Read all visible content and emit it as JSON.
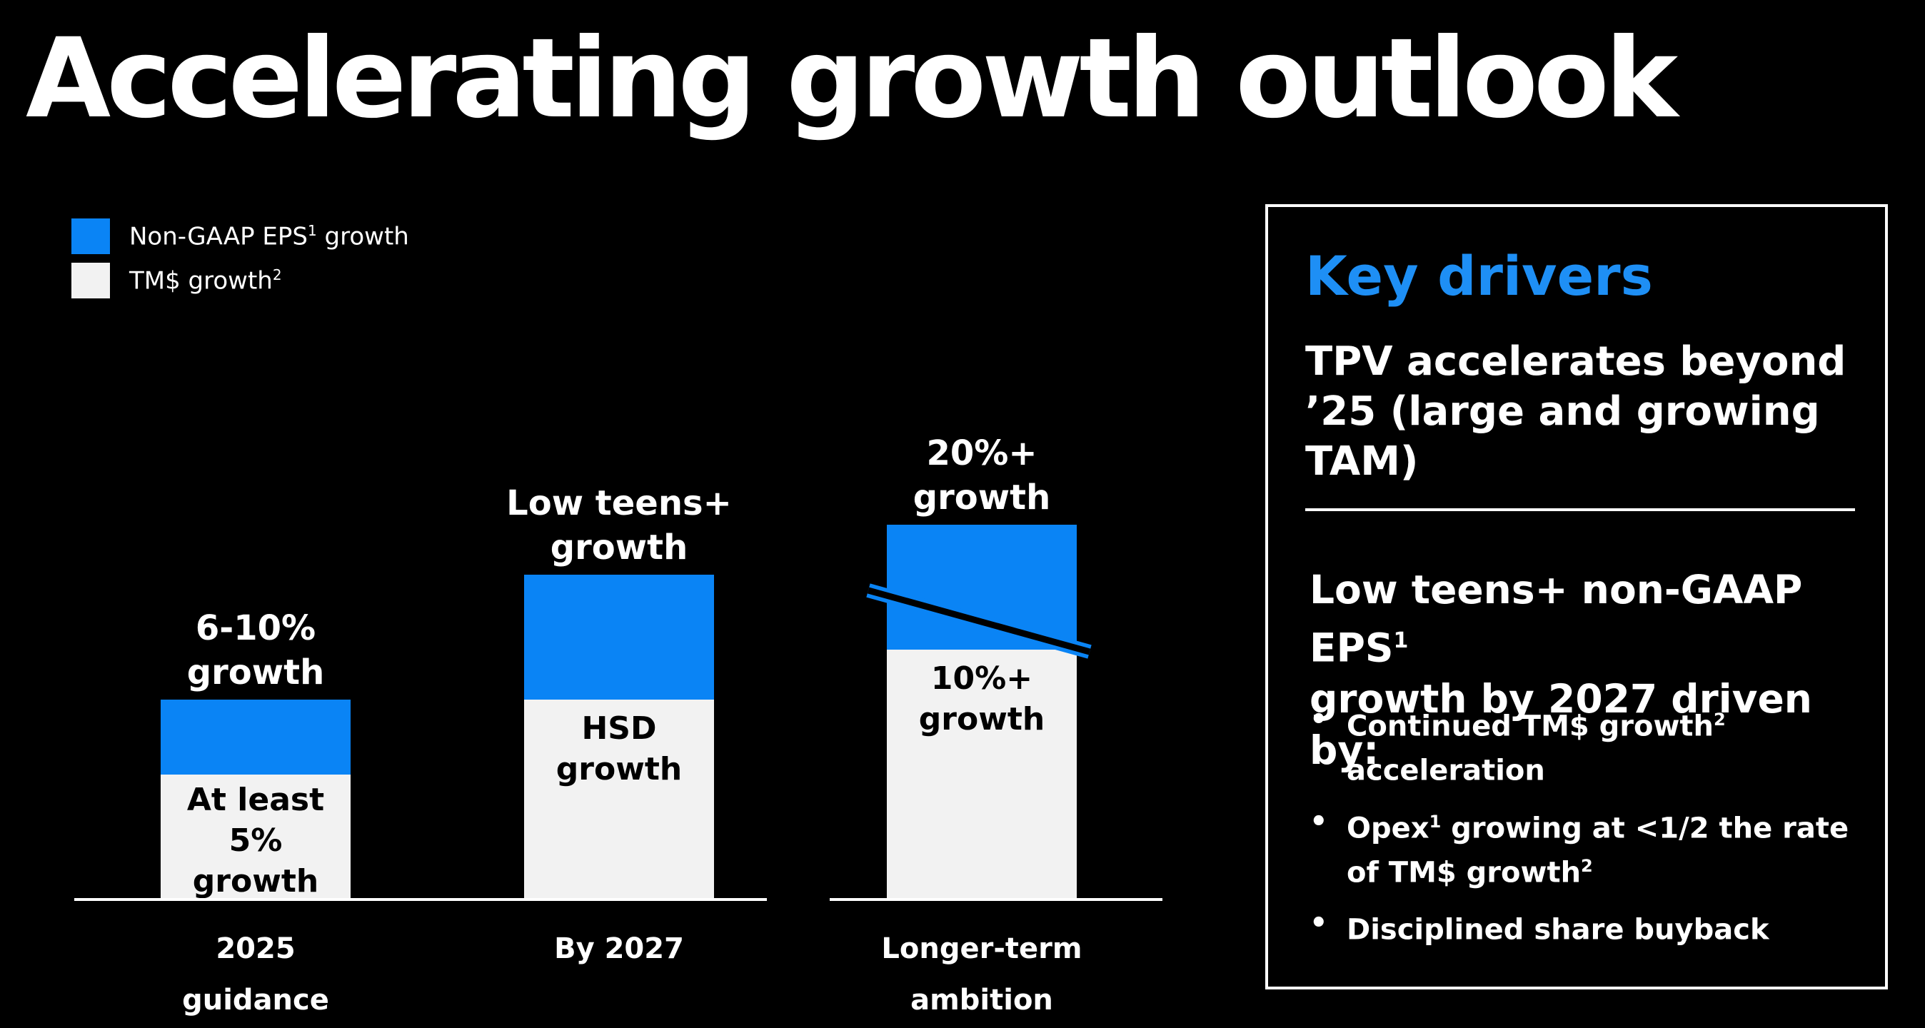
{
  "title": "Accelerating growth outlook",
  "legend": {
    "eps": {
      "label": "Non-GAAP EPS",
      "sup": "1",
      "suffix": " growth"
    },
    "tm": {
      "label": "TM$ growth",
      "sup": "2"
    }
  },
  "colors": {
    "eps": "#0A84F5",
    "tm": "#F2F2F2",
    "background": "#000000",
    "accent_title": "#1E8FF5"
  },
  "chart_data": {
    "type": "bar",
    "stacked": true,
    "categories": [
      [
        "2025",
        "guidance"
      ],
      [
        "By 2027"
      ],
      [
        "Longer-term",
        "ambition"
      ]
    ],
    "series": [
      {
        "name": "TM$ growth",
        "color": "#F2F2F2",
        "label_color": "#000000",
        "values": [
          5,
          8,
          10
        ],
        "labels": [
          [
            "At least",
            "5%",
            "growth"
          ],
          [
            "HSD",
            "growth"
          ],
          [
            "10%+",
            "growth"
          ]
        ]
      },
      {
        "name": "Non-GAAP EPS growth",
        "color": "#0A84F5",
        "values": [
          3,
          5,
          5
        ],
        "labels": [
          [
            "6-10%",
            "growth"
          ],
          [
            "Low teens+",
            "growth"
          ],
          [
            "20%+",
            "growth"
          ]
        ]
      }
    ],
    "axis_break": [
      false,
      false,
      true
    ],
    "grid": false,
    "legend_position": "top-left",
    "ylim": [
      0,
      15
    ],
    "xlabel": "",
    "ylabel": ""
  },
  "key_drivers": {
    "title": "Key drivers",
    "driver1": "TPV accelerates beyond ’25 (large and growing TAM)",
    "driver2": {
      "text1": "Low teens+ non-GAAP EPS",
      "sup": "1",
      "text2": "growth by 2027 driven by:"
    },
    "bullets": [
      {
        "t1": "Continued TM$ growth",
        "s1": "2",
        "t2": " acceleration",
        "s2": "",
        "t3": ""
      },
      {
        "t1": "Opex",
        "s1": "1",
        "t2": " growing at <1/2 the rate of TM$ growth",
        "s2": "2",
        "t3": ""
      },
      {
        "t1": "Disciplined share buyback",
        "s1": "",
        "t2": "",
        "s2": "",
        "t3": ""
      }
    ]
  }
}
